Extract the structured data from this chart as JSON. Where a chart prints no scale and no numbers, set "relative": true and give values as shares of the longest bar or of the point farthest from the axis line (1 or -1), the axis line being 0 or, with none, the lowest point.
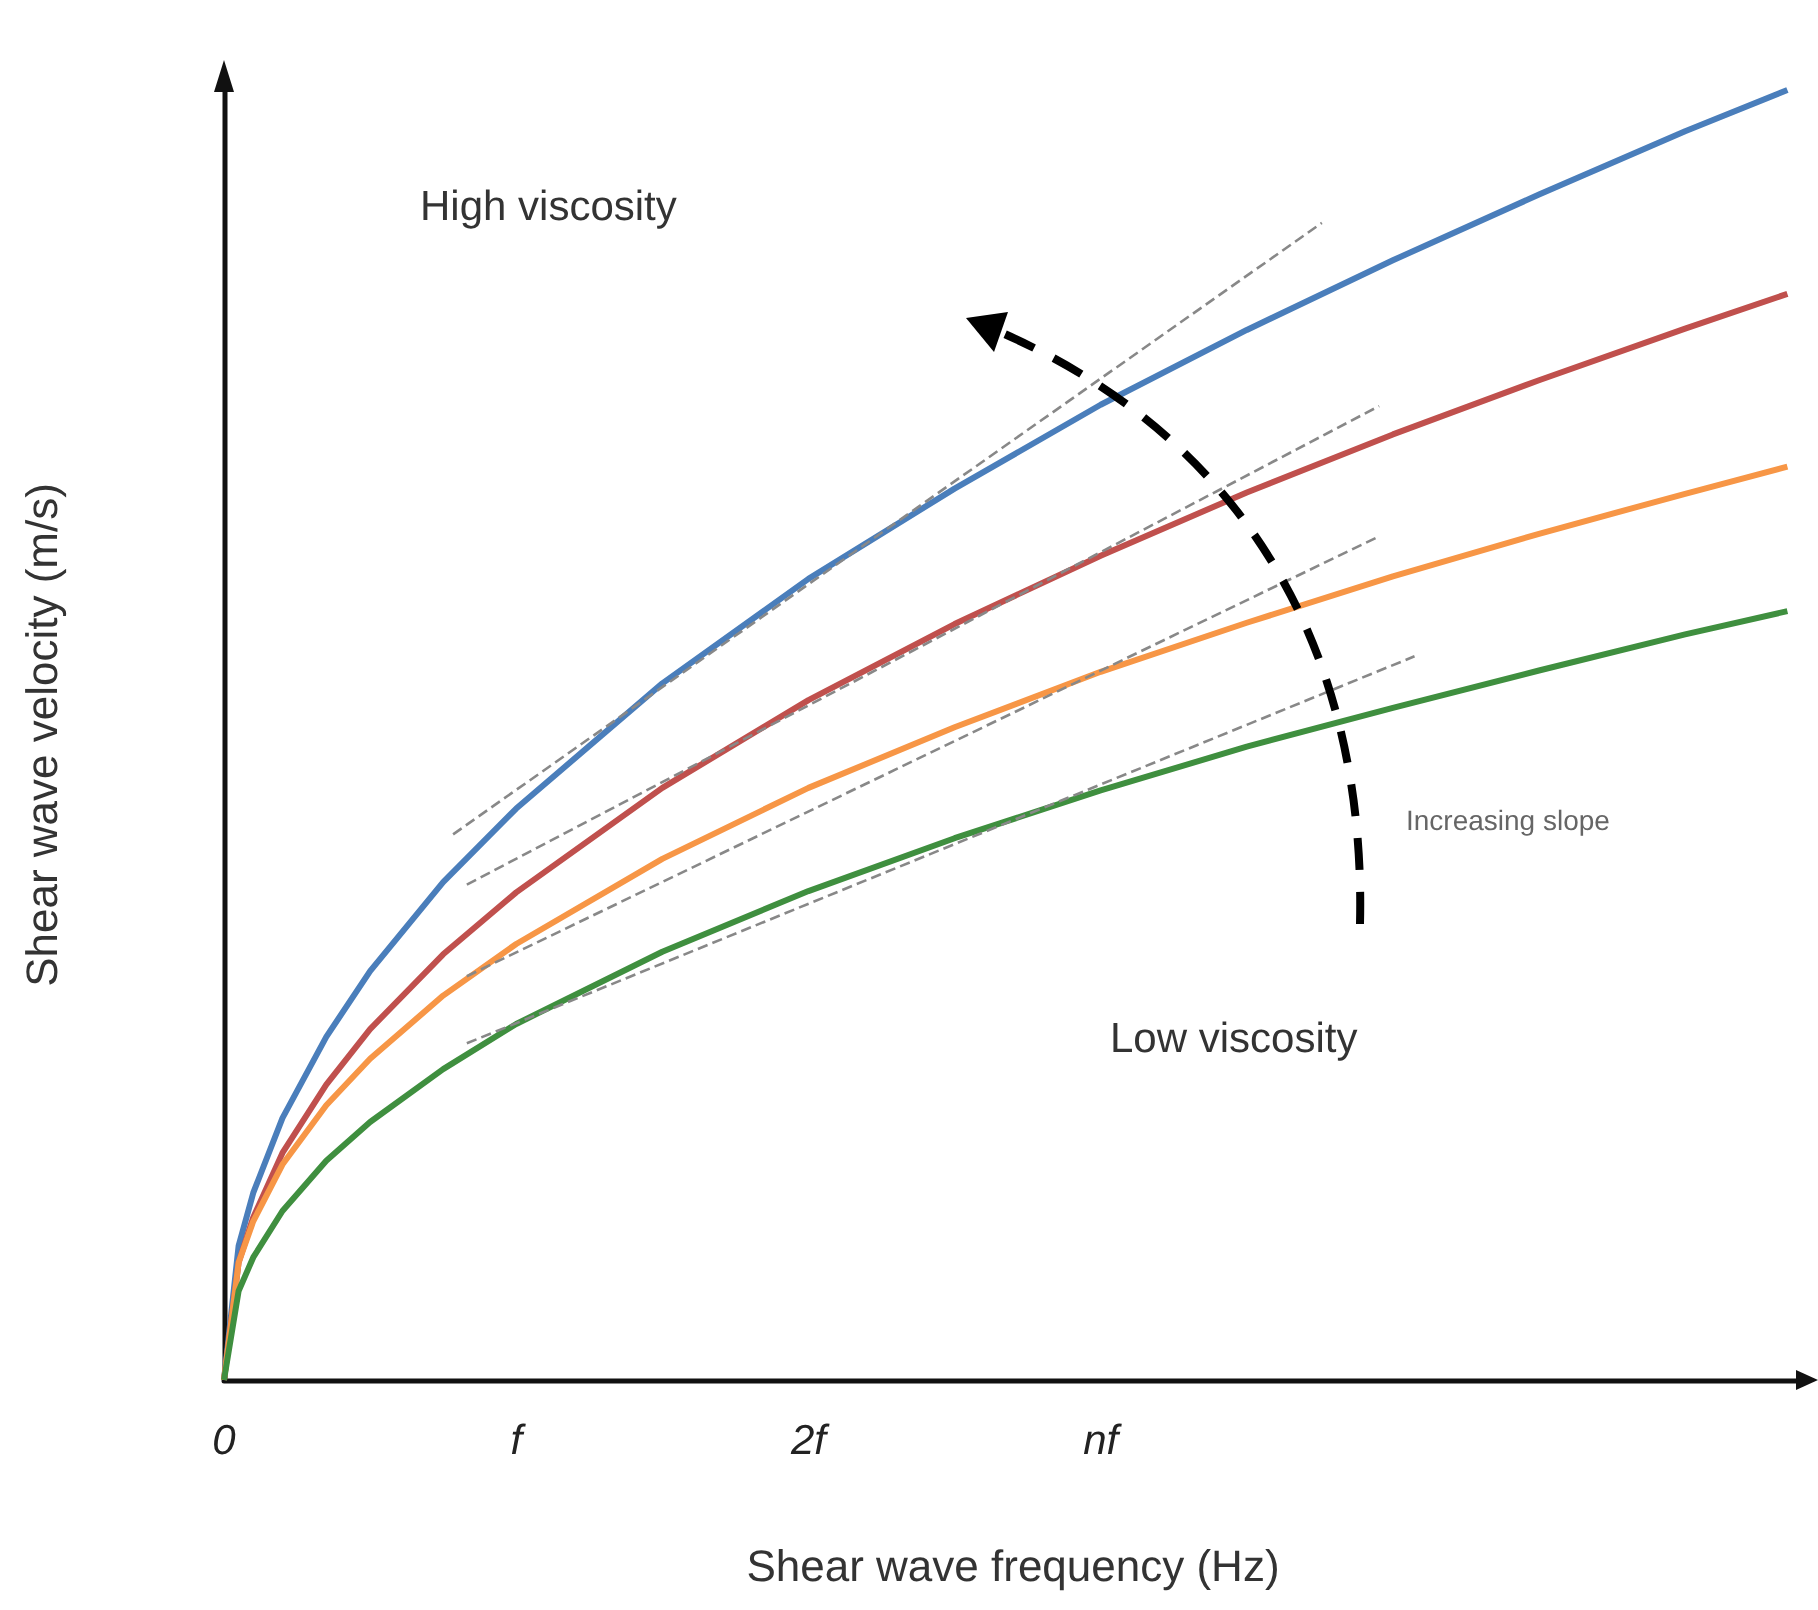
{
  "chart_data": {
    "type": "line",
    "xlabel": "Shear wave frequency (Hz)",
    "ylabel": "Shear wave velocity (m/s)",
    "relative": true,
    "x": [
      0,
      0.05,
      0.1,
      0.2,
      0.35,
      0.5,
      0.75,
      1,
      1.5,
      2,
      2.5,
      3,
      3.5,
      4,
      4.5,
      5,
      5.35
    ],
    "xlim": [
      0,
      5.4
    ],
    "xticks": [
      0,
      {
        "value": 1,
        "label": "f"
      },
      {
        "value": 2,
        "label": "2f"
      },
      {
        "value": 3,
        "label": "nf"
      }
    ],
    "grid": false,
    "marker": "none",
    "line_style": "solid",
    "series": [
      {
        "color": "#4a7ebb",
        "values": [
          0,
          0.104,
          0.145,
          0.203,
          0.266,
          0.317,
          0.386,
          0.443,
          0.54,
          0.621,
          0.691,
          0.756,
          0.814,
          0.868,
          0.919,
          0.968,
          1
        ]
      },
      {
        "color": "#c0504d",
        "values": [
          0,
          0.091,
          0.126,
          0.176,
          0.229,
          0.272,
          0.33,
          0.378,
          0.459,
          0.527,
          0.586,
          0.639,
          0.688,
          0.733,
          0.775,
          0.815,
          0.842
        ]
      },
      {
        "color": "#f79646",
        "values": [
          0,
          0.091,
          0.123,
          0.167,
          0.213,
          0.249,
          0.298,
          0.338,
          0.404,
          0.459,
          0.506,
          0.549,
          0.587,
          0.623,
          0.656,
          0.687,
          0.708
        ]
      },
      {
        "color": "#3f8f3f",
        "values": [
          0,
          0.069,
          0.095,
          0.131,
          0.17,
          0.2,
          0.241,
          0.276,
          0.332,
          0.379,
          0.42,
          0.457,
          0.491,
          0.521,
          0.55,
          0.578,
          0.596
        ]
      },
      {
        "type": "line",
        "color": "#888888",
        "line_style": "dashed",
        "x": [
          0.784,
          3.757
        ],
        "values": [
          0.423,
          0.897
        ]
      },
      {
        "type": "line",
        "color": "#888888",
        "line_style": "dashed",
        "x": [
          0.831,
          3.953
        ],
        "values": [
          0.384,
          0.755
        ]
      },
      {
        "type": "line",
        "color": "#888888",
        "line_style": "dashed",
        "x": [
          0.831,
          3.953
        ],
        "values": [
          0.313,
          0.654
        ]
      },
      {
        "type": "line",
        "color": "#888888",
        "line_style": "dashed",
        "x": [
          0.831,
          4.074
        ],
        "values": [
          0.261,
          0.561
        ]
      }
    ],
    "annotations": [
      "High viscosity",
      "Increasing slope",
      "Low viscosity"
    ]
  }
}
